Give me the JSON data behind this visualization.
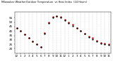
{
  "title_left": "Milwaukee Weather",
  "title_right_1": "Outdoor Temperature",
  "title_right_2": "vs Heat Index",
  "title_right_3": "(24 Hours)",
  "bg_color": "#ffffff",
  "plot_bg": "#ffffff",
  "grid_color": "#aaaaaa",
  "temp_color": "#cc0000",
  "heat_color": "#000000",
  "legend_orange_color": "#ff8800",
  "legend_red_color": "#ff0000",
  "hours": [
    0,
    1,
    2,
    3,
    4,
    5,
    6,
    7,
    8,
    9,
    10,
    11,
    12,
    13,
    14,
    15,
    16,
    17,
    18,
    19,
    20,
    21,
    22,
    23
  ],
  "temp_values": [
    43,
    40,
    36,
    32,
    28,
    25,
    22,
    38,
    50,
    56,
    57,
    56,
    53,
    50,
    47,
    43,
    40,
    37,
    34,
    32,
    29,
    27,
    26,
    25
  ],
  "heat_values": [
    43,
    40,
    36,
    32,
    28,
    25,
    22,
    37,
    49,
    55,
    57,
    55,
    52,
    49,
    46,
    43,
    40,
    37,
    33,
    31,
    28,
    26,
    25,
    24
  ],
  "ylim": [
    15,
    62
  ],
  "xlim": [
    -0.5,
    23.5
  ],
  "tick_fontsize": 3.0,
  "yticks": [
    20,
    25,
    30,
    35,
    40,
    45,
    50,
    55
  ],
  "xtick_labels": [
    "12",
    "1",
    "2",
    "3",
    "4",
    "5",
    "6",
    "7",
    "8",
    "9",
    "10",
    "11",
    "12",
    "1",
    "2",
    "3",
    "4",
    "5",
    "6",
    "7",
    "8",
    "9",
    "10",
    "11"
  ]
}
